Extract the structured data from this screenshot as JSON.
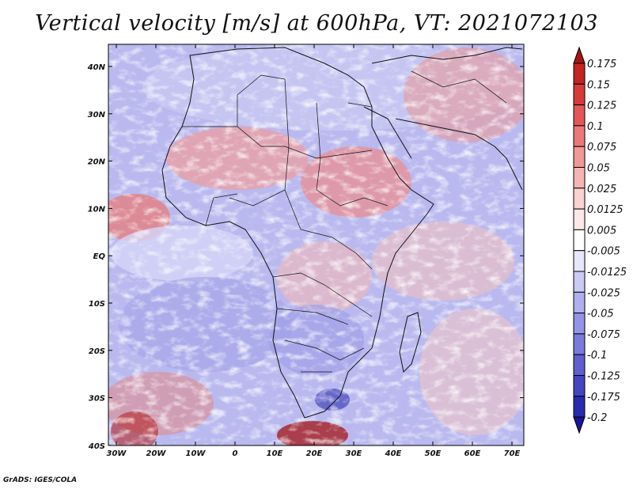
{
  "title": "Vertical velocity [m/s] at 600hPa, VT: 2021072103",
  "credit": "GrADS: IGES/COLA",
  "map": {
    "lon_ticks": [
      "30W",
      "20W",
      "10W",
      "0",
      "10E",
      "20E",
      "30E",
      "40E",
      "50E",
      "60E",
      "70E"
    ],
    "lat_ticks": [
      "40N",
      "30N",
      "20N",
      "10N",
      "EQ",
      "10S",
      "20S",
      "30S",
      "40S"
    ],
    "lon_range": [
      -30,
      75
    ],
    "lat_range": [
      -40,
      45
    ]
  },
  "colorbar": {
    "labels": [
      "0.175",
      "0.15",
      "0.125",
      "0.1",
      "0.075",
      "0.05",
      "0.025",
      "0.0125",
      "0.005",
      "-0.005",
      "-0.0125",
      "-0.025",
      "-0.05",
      "-0.075",
      "-0.1",
      "-0.125",
      "-0.175",
      "-0.2"
    ],
    "colors": [
      "#a51515",
      "#c42424",
      "#d83a3a",
      "#e35757",
      "#ea7878",
      "#f09797",
      "#f5b5b5",
      "#f9d2d2",
      "#fde8e8",
      "#ffffff",
      "#e6e6fc",
      "#cacaf6",
      "#afafee",
      "#9494e6",
      "#7a7adc",
      "#5f5fd0",
      "#4545c2",
      "#2b2bb0",
      "#16169a"
    ]
  }
}
